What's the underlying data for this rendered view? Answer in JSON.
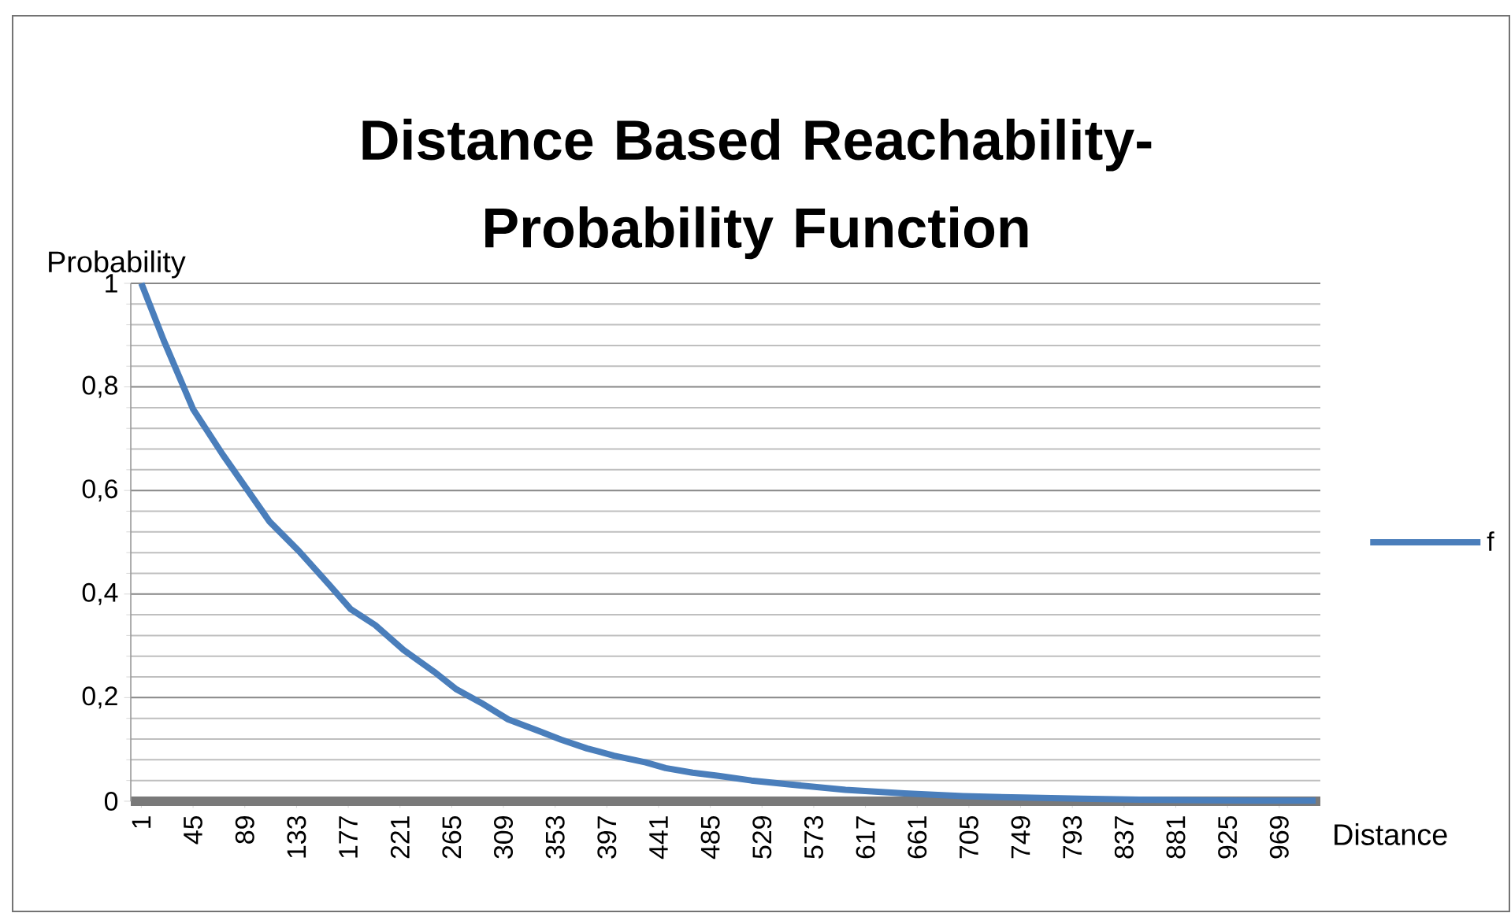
{
  "chart_data": {
    "type": "line",
    "title": "Distance Based Reachability-Probability Function",
    "xlabel": "Distance",
    "ylabel": "Probability",
    "x": [
      1,
      20,
      45,
      70,
      90,
      110,
      135,
      160,
      179,
      200,
      224,
      250,
      269,
      290,
      313,
      340,
      358,
      380,
      403,
      430,
      447,
      470,
      492,
      520,
      550,
      600,
      650,
      700,
      750,
      800,
      850,
      900,
      950,
      1000
    ],
    "series": [
      {
        "name": "f",
        "color": "#4a7ebb",
        "values": [
          1,
          0.89,
          0.757,
          0.67,
          0.605,
          0.54,
          0.483,
          0.42,
          0.371,
          0.34,
          0.292,
          0.25,
          0.216,
          0.19,
          0.158,
          0.135,
          0.119,
          0.102,
          0.088,
          0.075,
          0.064,
          0.055,
          0.049,
          0.04,
          0.033,
          0.022,
          0.015,
          0.01,
          0.007,
          0.005,
          0.003,
          0.002,
          0.001,
          0.001
        ]
      }
    ],
    "xlim": [
      -8,
      1004
    ],
    "xticks": [
      1,
      45,
      89,
      133,
      177,
      221,
      265,
      309,
      353,
      397,
      441,
      485,
      529,
      573,
      617,
      661,
      705,
      749,
      793,
      837,
      881,
      925,
      969
    ],
    "ylim": [
      0,
      1
    ],
    "yticks": [
      {
        "value": 0,
        "label": "0"
      },
      {
        "value": 0.2,
        "label": "0,2"
      },
      {
        "value": 0.4,
        "label": "0,4"
      },
      {
        "value": 0.6,
        "label": "0,6"
      },
      {
        "value": 0.8,
        "label": "0,8"
      },
      {
        "value": 1,
        "label": "1"
      }
    ],
    "grid": "y",
    "legend": "right",
    "marker": "none",
    "line_style": "solid"
  }
}
